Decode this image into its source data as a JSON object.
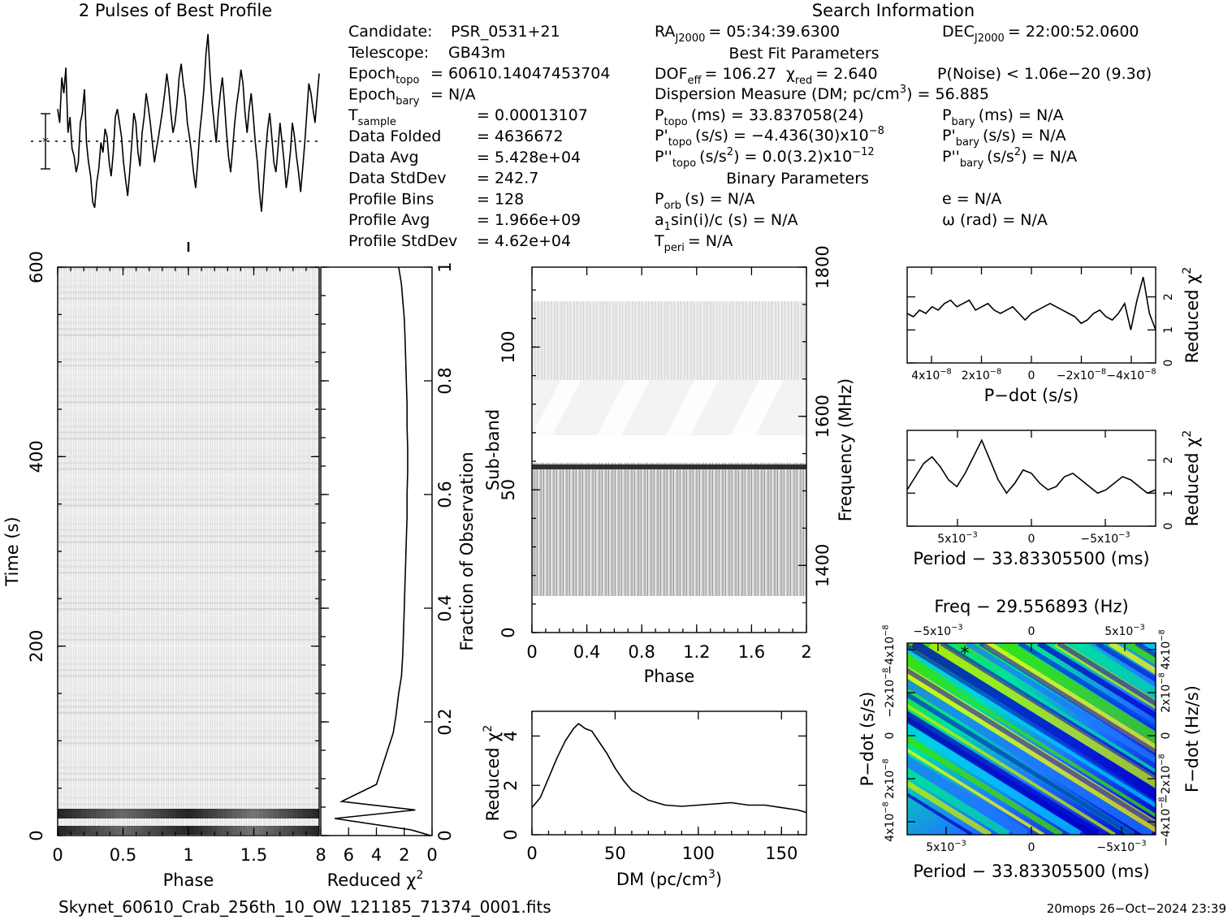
{
  "header": {
    "profile_title": "2 Pulses of Best Profile",
    "search_title": "Search Information",
    "best_fit_title": "Best Fit Parameters",
    "binary_title": "Binary Parameters"
  },
  "info_left": [
    {
      "label": "Candidate:",
      "value": "PSR_0531+21"
    },
    {
      "label": "Telescope:",
      "value": "GB43m"
    },
    {
      "label": "Epoch",
      "sub": "topo",
      "value": "= 60610.14047453704"
    },
    {
      "label": "Epoch",
      "sub": "bary",
      "value": "= N/A"
    },
    {
      "label": "T",
      "sub": "sample",
      "value": "=   0.00013107"
    },
    {
      "label": "Data Folded",
      "value": "=   4636672"
    },
    {
      "label": "Data Avg",
      "value": "=   5.428e+04"
    },
    {
      "label": "Data StdDev",
      "value": "=   242.7"
    },
    {
      "label": "Profile Bins",
      "value": "=   128"
    },
    {
      "label": "Profile Avg",
      "value": "=   1.966e+09"
    },
    {
      "label": "Profile StdDev",
      "value": "=   4.62e+04"
    }
  ],
  "info_right": {
    "ra": "RA",
    "ra_sub": "J2000",
    "ra_value": "= 05:34:39.6300",
    "dec": "DEC",
    "dec_sub": "J2000",
    "dec_value": "= 22:00:52.0600",
    "dof": "DOF",
    "dof_sub": "eff",
    "dof_value": "= 106.27",
    "chi": "χ",
    "chi_sub": "red",
    "chi_value": "= 2.640",
    "pnoise": "P(Noise) < 1.06e−20  (9.3σ)",
    "dm_line": "Dispersion Measure (DM; pc/cm",
    "dm_value": ") = 56.885",
    "ptopo": "P",
    "ptopo_sub": "topo",
    "ptopo_value": "(ms) =  33.837058(24)",
    "pbary": "P",
    "pbary_sub": "bary",
    "pbary_value": "(ms) = N/A",
    "pdtopo": "P'",
    "pdtopo_sub": "topo",
    "pdtopo_value": "(s/s) = −4.436(30)x10",
    "pdtopo_exp": "−8",
    "pdbary": "P'",
    "pdbary_sub": "bary",
    "pdbary_value": "(s/s) = N/A",
    "pddtopo": "P''",
    "pddtopo_sub": "topo",
    "pddtopo_value": "(s/s",
    "pddtopo_value2": ") = 0.0(3.2)x10",
    "pddtopo_exp": "−12",
    "pddbary": "P''",
    "pddbary_sub": "bary",
    "pddbary_value": "(s/s",
    "pddbary_value2": ") = N/A",
    "porb": "P",
    "porb_sub": "orb",
    "porb_value": "(s) = N/A",
    "ecc": "e = N/A",
    "a1": "a",
    "a1_sub": "1",
    "a1_value": "sin(i)/c (s) = N/A",
    "omega": "ω (rad) = N/A",
    "tperi": "T",
    "tperi_sub": "peri",
    "tperi_value": "= N/A"
  },
  "footer": {
    "filename": "Skynet_60610_Crab_256th_10_OW_121185_71374_0001.fits",
    "stamp": "20mops 26−Oct−2024 23:39"
  },
  "chart_data": [
    {
      "type": "line",
      "name": "profile",
      "title": "2 Pulses of Best Profile",
      "values": [
        0.62,
        0.55,
        0.78,
        0.7,
        0.83,
        0.5,
        0.58,
        0.42,
        0.38,
        0.3,
        0.35,
        0.55,
        0.6,
        0.72,
        0.45,
        0.35,
        0.28,
        0.15,
        0.12,
        0.25,
        0.32,
        0.45,
        0.4,
        0.52,
        0.48,
        0.35,
        0.28,
        0.4,
        0.58,
        0.62,
        0.55,
        0.48,
        0.35,
        0.26,
        0.18,
        0.3,
        0.45,
        0.6,
        0.55,
        0.4,
        0.33,
        0.5,
        0.58,
        0.7,
        0.63,
        0.55,
        0.45,
        0.35,
        0.42,
        0.48,
        0.55,
        0.62,
        0.7,
        0.8,
        0.72,
        0.6,
        0.5,
        0.55,
        0.65,
        0.78,
        0.85,
        0.75,
        0.68,
        0.55,
        0.48,
        0.4,
        0.3,
        0.22,
        0.35,
        0.5,
        0.6,
        0.72,
        0.9,
        1.0,
        0.8,
        0.65,
        0.55,
        0.45,
        0.6,
        0.7,
        0.78,
        0.65,
        0.5,
        0.38,
        0.3,
        0.42,
        0.55,
        0.65,
        0.72,
        0.82,
        0.75,
        0.6,
        0.5,
        0.62,
        0.7,
        0.58,
        0.45,
        0.35,
        0.2,
        0.1,
        0.25,
        0.4,
        0.52,
        0.6,
        0.48,
        0.35,
        0.3,
        0.42,
        0.55,
        0.45,
        0.35,
        0.22,
        0.3,
        0.4,
        0.55,
        0.48,
        0.38,
        0.3,
        0.2,
        0.32,
        0.45,
        0.6,
        0.75,
        0.7,
        0.62,
        0.55,
        0.68,
        0.8
      ]
    },
    {
      "type": "heatmap",
      "name": "time-phase",
      "xlabel": "Phase",
      "ylabel": "Time (s)",
      "xlim": [
        0,
        2
      ],
      "ylim": [
        0,
        600
      ],
      "xticks": [
        0,
        0.5,
        1,
        1.5
      ],
      "yticks": [
        0,
        200,
        400,
        600
      ]
    },
    {
      "type": "line",
      "name": "time-chi2",
      "xlabel": "Reduced χ²",
      "ylabel": "Fraction of Observation",
      "xlim": [
        8,
        0
      ],
      "ylim": [
        0,
        1
      ],
      "xticks": [
        8,
        6,
        4,
        2,
        0
      ],
      "yticks": [
        0,
        0.2,
        0.4,
        0.6,
        0.8,
        1
      ],
      "x": [
        0.1,
        1.5,
        7.0,
        1.2,
        6.5,
        4.0,
        3.6,
        3.2,
        2.8,
        2.6,
        2.4,
        2.2,
        2.1,
        2.05,
        2.0,
        1.95,
        1.9,
        1.85,
        1.8,
        1.8,
        1.75,
        1.75,
        1.8,
        1.8,
        1.85,
        1.9,
        1.95,
        2.0,
        2.1,
        2.2,
        2.4
      ],
      "y": [
        0,
        0.01,
        0.03,
        0.045,
        0.06,
        0.09,
        0.12,
        0.15,
        0.18,
        0.21,
        0.25,
        0.28,
        0.32,
        0.36,
        0.4,
        0.44,
        0.48,
        0.52,
        0.56,
        0.6,
        0.64,
        0.68,
        0.72,
        0.76,
        0.8,
        0.84,
        0.88,
        0.91,
        0.94,
        0.97,
        1.0
      ]
    },
    {
      "type": "heatmap",
      "name": "subband-phase",
      "xlabel": "Phase",
      "ylabel": "Sub-band",
      "y2label": "Frequency (MHz)",
      "xlim": [
        0,
        2
      ],
      "ylim": [
        0,
        128
      ],
      "y2lim": [
        1310,
        1800
      ],
      "xticks": [
        0,
        0.4,
        0.8,
        1.2,
        1.6,
        2
      ],
      "yticks": [
        0,
        50,
        100
      ],
      "y2ticks": [
        1400,
        1600,
        1800
      ]
    },
    {
      "type": "line",
      "name": "dm-chi2",
      "xlabel": "DM (pc/cm³)",
      "ylabel": "Reduced χ²",
      "xlim": [
        0,
        165
      ],
      "ylim": [
        0,
        5
      ],
      "xticks": [
        0,
        50,
        100,
        150
      ],
      "yticks": [
        0,
        2,
        4
      ],
      "x": [
        0,
        5,
        10,
        15,
        20,
        25,
        28,
        32,
        36,
        40,
        45,
        50,
        55,
        60,
        65,
        70,
        75,
        80,
        90,
        100,
        110,
        120,
        130,
        140,
        150,
        160,
        165
      ],
      "y": [
        1.1,
        1.5,
        2.3,
        3.1,
        3.8,
        4.3,
        4.5,
        4.3,
        4.2,
        3.8,
        3.3,
        2.7,
        2.2,
        1.8,
        1.6,
        1.4,
        1.3,
        1.2,
        1.15,
        1.2,
        1.25,
        1.3,
        1.2,
        1.2,
        1.1,
        1.0,
        0.9
      ]
    },
    {
      "type": "line",
      "name": "pdot-chi2",
      "xlabel": "P−dot (s/s)",
      "ylabel": "Reduced χ²",
      "ylim": [
        0,
        2.9
      ],
      "yticks": [
        0,
        1,
        2
      ],
      "xtick_labels": [
        "4x10",
        "2x10",
        "0",
        "−2x10",
        "−4x10"
      ],
      "xtick_exp": "−8",
      "values": [
        1.5,
        1.4,
        1.6,
        1.5,
        1.7,
        1.6,
        1.8,
        1.9,
        1.7,
        1.8,
        1.9,
        1.6,
        1.7,
        1.8,
        1.6,
        1.5,
        1.6,
        1.7,
        1.5,
        1.3,
        1.5,
        1.6,
        1.7,
        1.8,
        1.7,
        1.6,
        1.5,
        1.4,
        1.2,
        1.3,
        1.5,
        1.6,
        1.4,
        1.3,
        1.5,
        1.8,
        1.0,
        1.9,
        2.6,
        1.5,
        1.0
      ]
    },
    {
      "type": "line",
      "name": "period-chi2",
      "xlabel": "Period − 33.83305500 (ms)",
      "ylabel": "Reduced χ²",
      "ylim": [
        0,
        2.9
      ],
      "yticks": [
        0,
        1,
        2
      ],
      "xtick_labels": [
        "5x10",
        "0",
        "−5x10"
      ],
      "xtick_exp": "−3",
      "values": [
        1.1,
        1.5,
        1.9,
        2.1,
        1.8,
        1.4,
        1.2,
        1.6,
        2.1,
        2.6,
        2.0,
        1.4,
        1.0,
        1.3,
        1.7,
        1.6,
        1.3,
        1.1,
        1.2,
        1.5,
        1.6,
        1.4,
        1.2,
        1.0,
        1.1,
        1.3,
        1.5,
        1.4,
        1.2,
        1.0,
        1.1
      ]
    },
    {
      "type": "heatmap",
      "name": "period-pdot",
      "title": "Freq − 29.556893 (Hz)",
      "xlabel": "Period − 33.83305500 (ms)",
      "ylabel": "P−dot (s/s)",
      "y2label": "F−dot (Hz/s)",
      "xtick_labels": [
        "5x10",
        "0",
        "−5x10"
      ],
      "xtick_exp": "−3",
      "top_tick_labels": [
        "−5x10",
        "0",
        "5x10"
      ],
      "ytick_labels": [
        "4x10",
        "2x10",
        "0",
        "−2x10",
        "−4x10"
      ],
      "ytick_exp": "−8",
      "y2tick_labels": [
        "−4x10",
        "−2x10",
        "0",
        "2x10",
        "4x10"
      ],
      "y2tick_exp": "−8",
      "colors": [
        "#0000c8",
        "#1e78ff",
        "#00c8ff",
        "#00e0a0",
        "#40e000",
        "#c8f000",
        "#ffff00"
      ]
    }
  ]
}
